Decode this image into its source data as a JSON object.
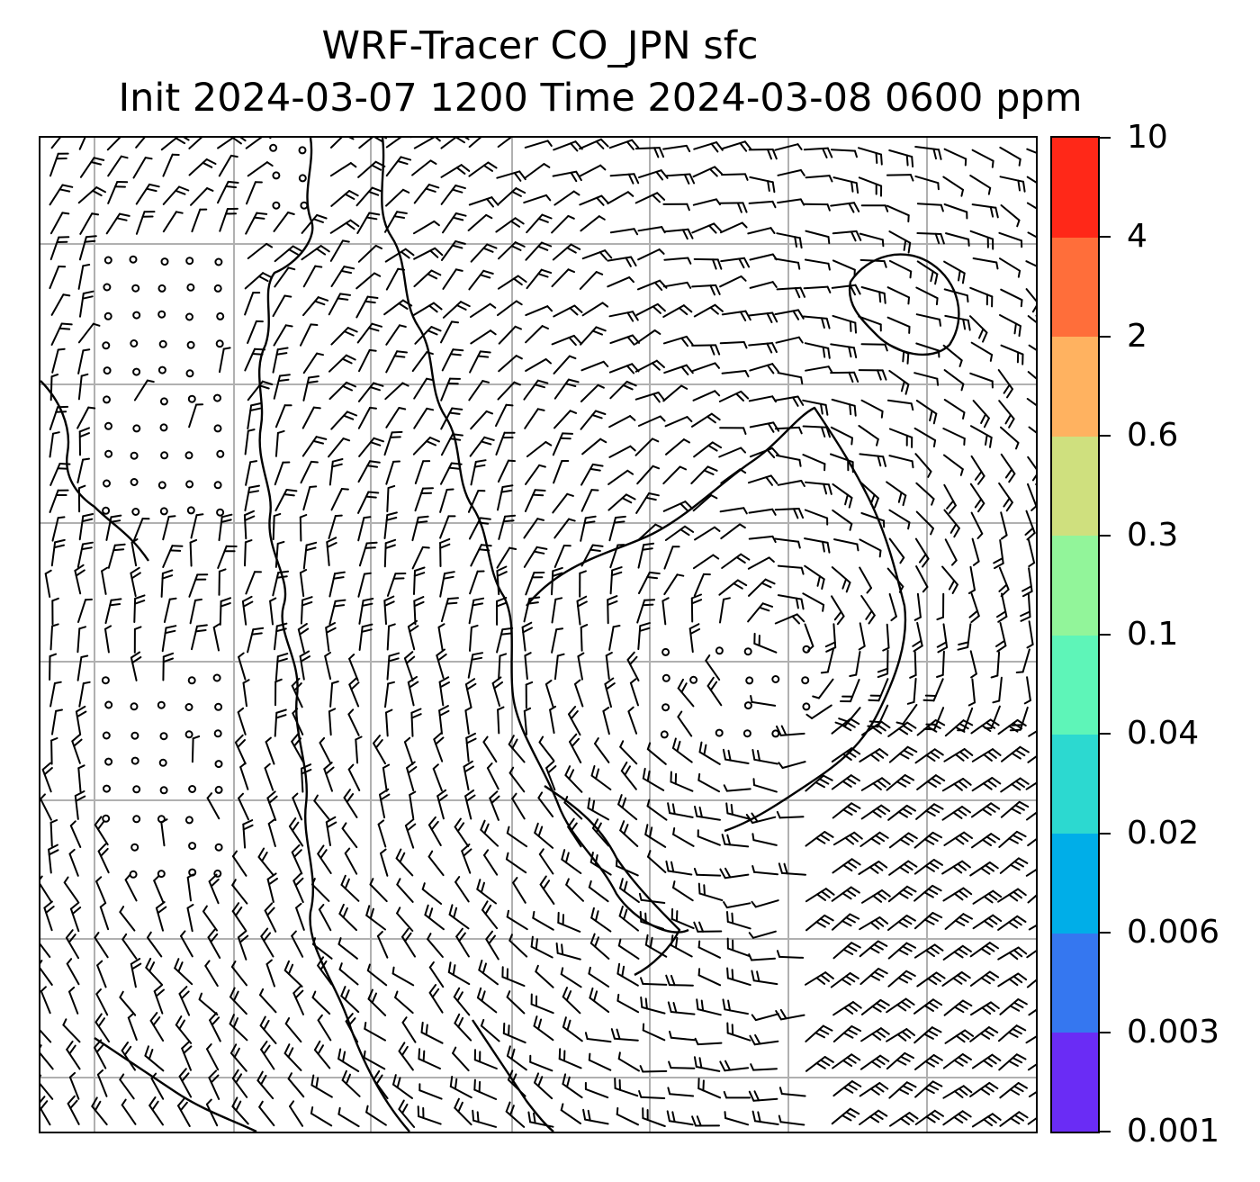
{
  "title": {
    "line1": "WRF-Tracer CO_JPN sfc",
    "line2": "Init 2024-03-07 1200 Time 2024-03-08 0600 ppm"
  },
  "map": {
    "gridlines": true,
    "gridline_color": "#b0b0b0",
    "coastline_color": "#000000",
    "barb_color": "#000000",
    "layers": [
      "coastlines",
      "lat-lon-gridlines",
      "wind-barbs",
      "calm-wind-circles"
    ]
  },
  "colorbar": {
    "levels": [
      "0.001",
      "0.003",
      "0.006",
      "0.02",
      "0.04",
      "0.1",
      "0.3",
      "0.6",
      "2",
      "4",
      "10"
    ],
    "colors": [
      "#6a2cf5",
      "#3577f0",
      "#00aee8",
      "#2cd9d0",
      "#5ef5b8",
      "#92f59a",
      "#cfe07e",
      "#ffb260",
      "#ff6e3a",
      "#ff2818"
    ]
  }
}
